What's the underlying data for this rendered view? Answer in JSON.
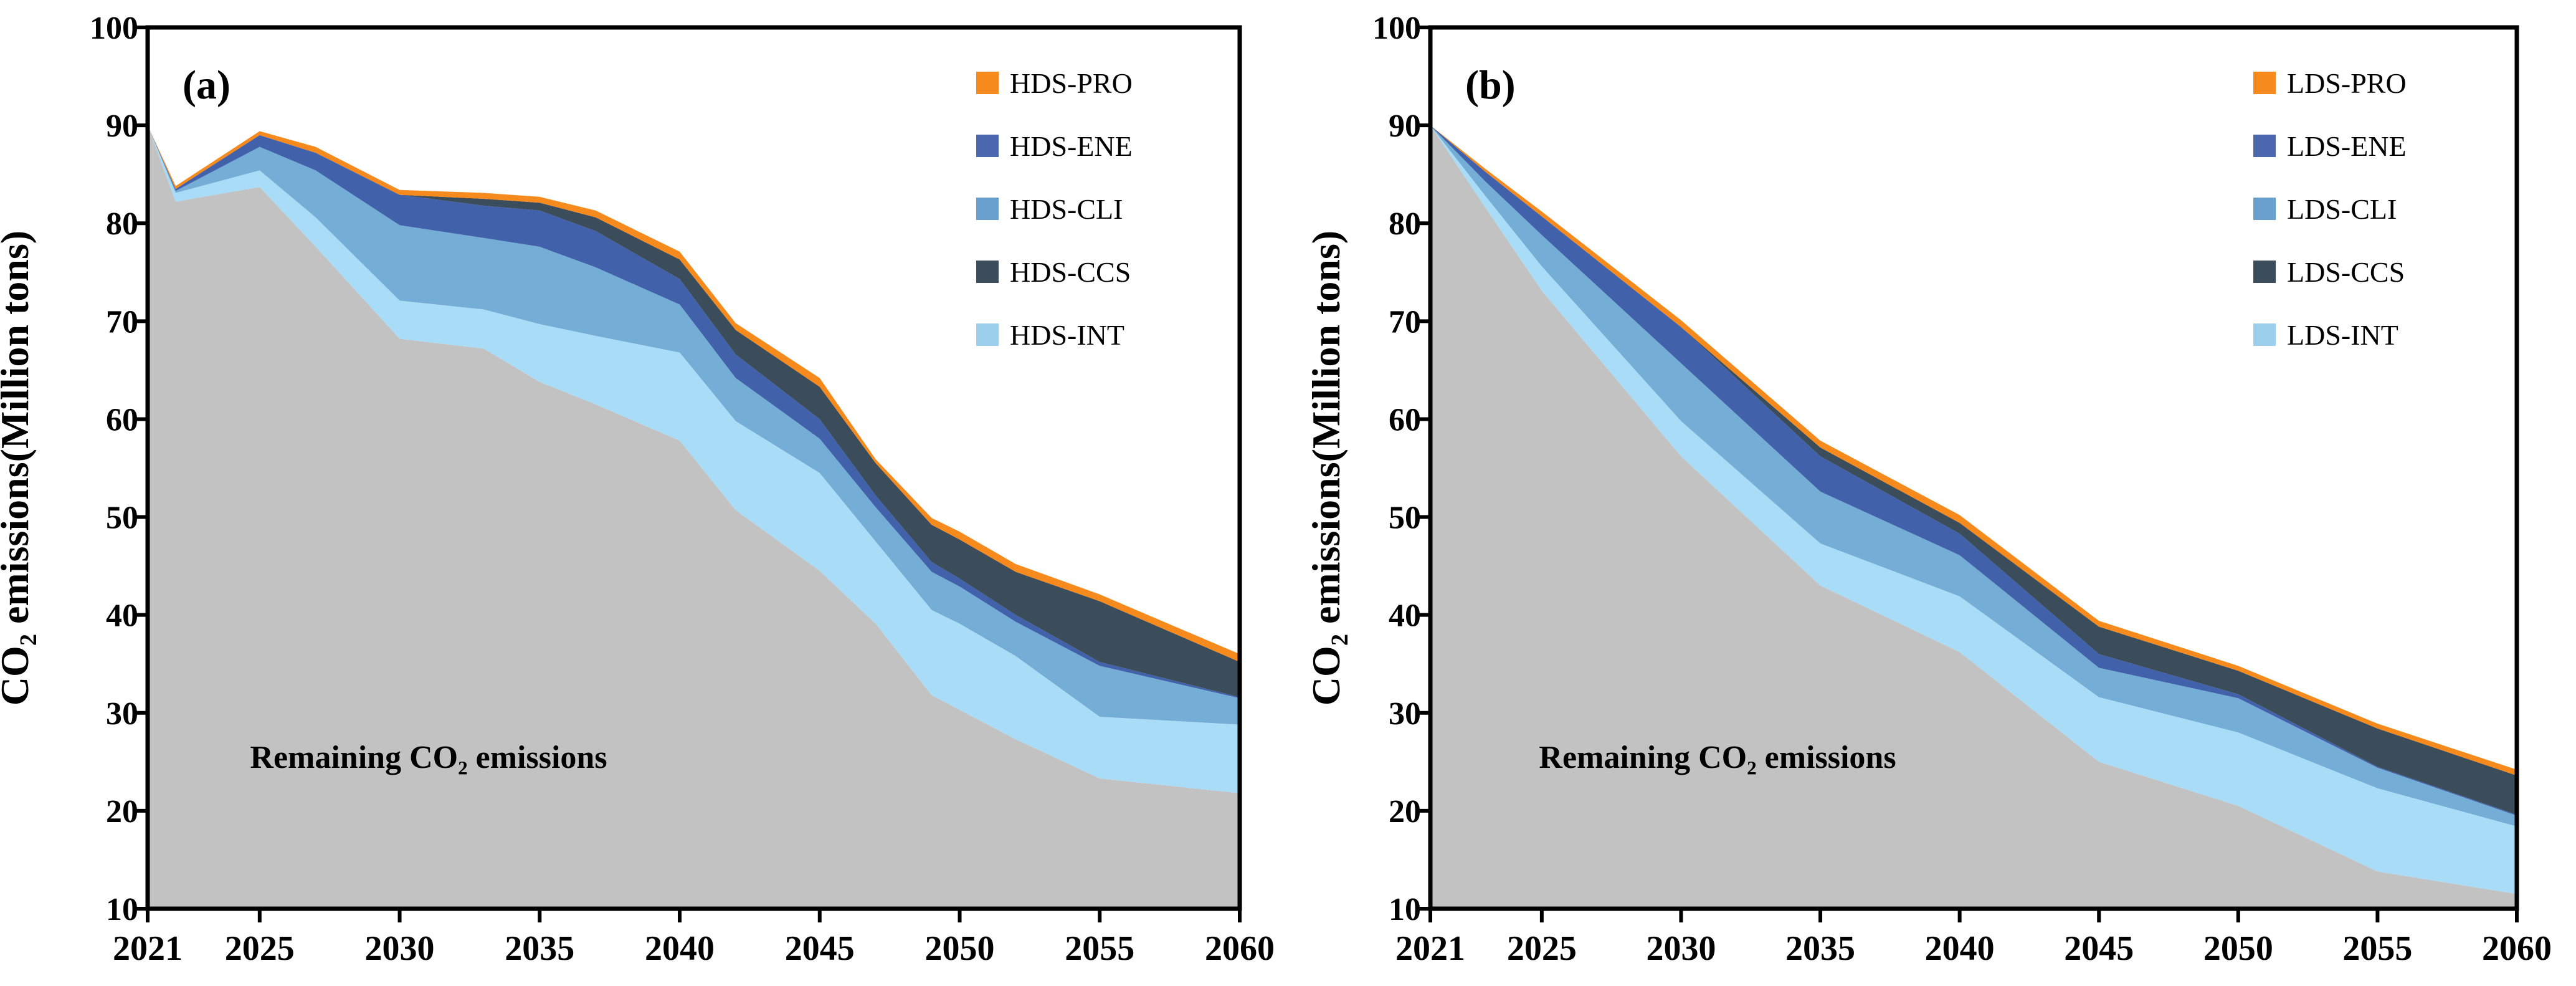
{
  "figure": {
    "background": "#FFFFFF",
    "axis_color": "#000000"
  },
  "y_axis": {
    "label": "CO₂ emissions(Million tons)",
    "min": 10,
    "max": 100,
    "ticks": [
      100,
      90,
      80,
      70,
      60,
      50,
      40,
      30,
      20,
      10
    ]
  },
  "x_axis": {
    "ticks": [
      2021,
      2025,
      2030,
      2035,
      2040,
      2045,
      2050,
      2055,
      2060
    ]
  },
  "chart_data": [
    {
      "type": "area",
      "stacked": true,
      "panel_label": "(a)",
      "annotation": "Remaining CO₂ emissions",
      "xlabel": "",
      "ylabel": "CO₂ emissions(Million tons)",
      "ylim": [
        10,
        100
      ],
      "xlim": [
        2021,
        2060
      ],
      "grid": false,
      "legend_position": "top-right-inside",
      "stack_note": "series listed bottom-to-top; 'top' arrays are cumulative stack boundaries in Million tons read from the axes",
      "x": [
        2021,
        2022,
        2025,
        2027,
        2030,
        2033,
        2035,
        2037,
        2040,
        2042,
        2045,
        2047,
        2049,
        2050,
        2052,
        2055,
        2060
      ],
      "series": [
        {
          "id": "remaining",
          "name": "Remaining CO₂ emissions",
          "color": "#C3C2C2",
          "top": [
            90,
            82.2,
            83.7,
            77.6,
            68.2,
            67.2,
            63.8,
            61.5,
            57.8,
            50.7,
            44.5,
            39.1,
            31.8,
            30.3,
            27.3,
            23.3,
            21.8
          ]
        },
        {
          "id": "int",
          "name": "HDS-INT",
          "color": "#A9DCF6",
          "top": [
            90,
            83.1,
            85.4,
            80.6,
            72.1,
            71.2,
            69.7,
            68.5,
            66.8,
            59.8,
            54.5,
            47.5,
            40.5,
            39.1,
            35.8,
            29.6,
            28.8
          ]
        },
        {
          "id": "cli",
          "name": "HDS-CLI",
          "color": "#74ADD6",
          "top": [
            90,
            83.3,
            87.8,
            85.4,
            79.8,
            78.5,
            77.6,
            75.5,
            71.7,
            64.2,
            58.0,
            51.0,
            44.4,
            42.9,
            39.3,
            34.8,
            31.5
          ]
        },
        {
          "id": "ene",
          "name": "HDS-ENE",
          "color": "#4161AA",
          "top": [
            90,
            83.5,
            89.0,
            87.2,
            82.9,
            81.8,
            81.3,
            79.2,
            74.3,
            66.6,
            60.0,
            52.2,
            45.4,
            43.7,
            40.0,
            35.2,
            31.6
          ]
        },
        {
          "id": "ccs",
          "name": "HDS-CCS",
          "color": "#3B4C5B",
          "top": [
            90,
            83.5,
            89.0,
            87.2,
            82.9,
            82.5,
            82.1,
            80.6,
            76.3,
            69.1,
            63.3,
            55.5,
            49.2,
            47.7,
            44.4,
            41.4,
            35.2
          ]
        },
        {
          "id": "pro",
          "name": "HDS-PRO",
          "color": "#F68A1D",
          "top": [
            90,
            83.8,
            89.4,
            87.8,
            83.4,
            83.1,
            82.7,
            81.3,
            77.1,
            69.8,
            64.2,
            55.9,
            49.9,
            48.5,
            45.2,
            42.1,
            36.0
          ]
        }
      ],
      "legend": [
        {
          "label": "HDS-PRO",
          "color": "#F68A1D"
        },
        {
          "label": "HDS-ENE",
          "color": "#4B67AE"
        },
        {
          "label": "HDS-CLI",
          "color": "#689FCD"
        },
        {
          "label": "HDS-CCS",
          "color": "#3B4C5B"
        },
        {
          "label": "HDS-INT",
          "color": "#9BCFEB"
        }
      ]
    },
    {
      "type": "area",
      "stacked": true,
      "panel_label": "(b)",
      "annotation": "Remaining CO₂ emissions",
      "xlabel": "",
      "ylabel": "CO₂ emissions(Million tons)",
      "ylim": [
        10,
        100
      ],
      "xlim": [
        2021,
        2060
      ],
      "grid": false,
      "legend_position": "top-right-inside",
      "stack_note": "series listed bottom-to-top; 'top' arrays are cumulative stack boundaries in Million tons read from the axes",
      "x": [
        2021,
        2023,
        2025,
        2030,
        2035,
        2040,
        2045,
        2050,
        2055,
        2060
      ],
      "series": [
        {
          "id": "remaining",
          "name": "Remaining CO₂ emissions",
          "color": "#C3C2C2",
          "top": [
            90,
            81.5,
            73.1,
            56.2,
            43.0,
            36.2,
            25.0,
            20.5,
            13.8,
            11.5
          ]
        },
        {
          "id": "int",
          "name": "LDS-INT",
          "color": "#A9DCF6",
          "top": [
            90,
            82.7,
            75.6,
            59.8,
            47.3,
            41.9,
            31.6,
            28.0,
            22.3,
            18.4
          ]
        },
        {
          "id": "cli",
          "name": "LDS-CLI",
          "color": "#74ADD6",
          "top": [
            90,
            84.2,
            78.8,
            65.7,
            52.6,
            46.1,
            34.6,
            31.5,
            24.4,
            19.5
          ]
        },
        {
          "id": "ene",
          "name": "LDS-ENE",
          "color": "#4161AA",
          "top": [
            90,
            85.2,
            80.7,
            69.4,
            56.2,
            48.3,
            36.0,
            31.9,
            24.5,
            19.6
          ]
        },
        {
          "id": "ccs",
          "name": "LDS-CCS",
          "color": "#3B4C5B",
          "top": [
            90,
            85.2,
            80.7,
            69.4,
            57.1,
            49.4,
            38.8,
            34.3,
            28.4,
            23.6
          ]
        },
        {
          "id": "pro",
          "name": "LDS-PRO",
          "color": "#F68A1D",
          "top": [
            90,
            85.5,
            81.2,
            70.1,
            57.8,
            50.2,
            39.4,
            34.8,
            28.9,
            24.2
          ]
        }
      ],
      "legend": [
        {
          "label": "LDS-PRO",
          "color": "#F68A1D"
        },
        {
          "label": "LDS-ENE",
          "color": "#4B67AE"
        },
        {
          "label": "LDS-CLI",
          "color": "#689FCD"
        },
        {
          "label": "LDS-CCS",
          "color": "#3B4C5B"
        },
        {
          "label": "LDS-INT",
          "color": "#9BCFEB"
        }
      ]
    }
  ]
}
